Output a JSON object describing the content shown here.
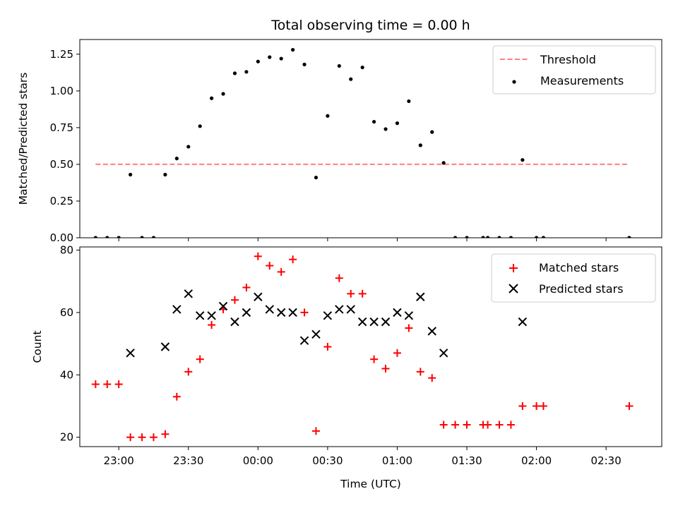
{
  "title": "Total observing time = 0.00 h",
  "chart_data": [
    {
      "type": "scatter",
      "ylabel": "Matched/Predicted stars",
      "ylim": [
        0,
        1.35
      ],
      "yticks": [
        "0.00",
        "0.25",
        "0.50",
        "0.75",
        "1.00",
        "1.25"
      ],
      "grid": false,
      "legend_position": "top-right",
      "threshold": {
        "name": "Threshold",
        "value": 0.5,
        "x_start": "22:50",
        "x_end": "02:40",
        "color": "#ff7f7f"
      },
      "series": [
        {
          "name": "Measurements",
          "color": "#000000",
          "points": [
            [
              "22:50",
              0.0
            ],
            [
              "22:55",
              0.0
            ],
            [
              "23:00",
              0.0
            ],
            [
              "23:05",
              0.43
            ],
            [
              "23:10",
              0.0
            ],
            [
              "23:15",
              0.0
            ],
            [
              "23:20",
              0.43
            ],
            [
              "23:25",
              0.54
            ],
            [
              "23:30",
              0.62
            ],
            [
              "23:35",
              0.76
            ],
            [
              "23:40",
              0.95
            ],
            [
              "23:45",
              0.98
            ],
            [
              "23:50",
              1.12
            ],
            [
              "23:55",
              1.13
            ],
            [
              "00:00",
              1.2
            ],
            [
              "00:05",
              1.23
            ],
            [
              "00:10",
              1.22
            ],
            [
              "00:15",
              1.28
            ],
            [
              "00:20",
              1.18
            ],
            [
              "00:25",
              0.41
            ],
            [
              "00:30",
              0.83
            ],
            [
              "00:35",
              1.17
            ],
            [
              "00:40",
              1.08
            ],
            [
              "00:45",
              1.16
            ],
            [
              "00:50",
              0.79
            ],
            [
              "00:55",
              0.74
            ],
            [
              "01:00",
              0.78
            ],
            [
              "01:05",
              0.93
            ],
            [
              "01:10",
              0.63
            ],
            [
              "01:15",
              0.72
            ],
            [
              "01:20",
              0.51
            ],
            [
              "01:25",
              0.0
            ],
            [
              "01:30",
              0.0
            ],
            [
              "01:37",
              0.0
            ],
            [
              "01:39",
              0.0
            ],
            [
              "01:44",
              0.0
            ],
            [
              "01:49",
              0.0
            ],
            [
              "01:54",
              0.53
            ],
            [
              "02:00",
              0.0
            ],
            [
              "02:03",
              0.0
            ],
            [
              "02:40",
              0.0
            ]
          ]
        }
      ]
    },
    {
      "type": "scatter",
      "xlabel": "Time (UTC)",
      "ylabel": "Count",
      "ylim": [
        17,
        81
      ],
      "yticks": [
        "20",
        "40",
        "60",
        "80"
      ],
      "xticks": [
        "23:00",
        "23:30",
        "00:00",
        "00:30",
        "01:00",
        "01:30",
        "02:00",
        "02:30"
      ],
      "grid": false,
      "legend_position": "top-right",
      "series": [
        {
          "name": "Matched stars",
          "color": "#ff0000",
          "marker": "plus",
          "points": [
            [
              "22:50",
              37
            ],
            [
              "22:55",
              37
            ],
            [
              "23:00",
              37
            ],
            [
              "23:05",
              20
            ],
            [
              "23:10",
              20
            ],
            [
              "23:15",
              20
            ],
            [
              "23:20",
              21
            ],
            [
              "23:25",
              33
            ],
            [
              "23:30",
              41
            ],
            [
              "23:35",
              45
            ],
            [
              "23:40",
              56
            ],
            [
              "23:45",
              61
            ],
            [
              "23:50",
              64
            ],
            [
              "23:55",
              68
            ],
            [
              "00:00",
              78
            ],
            [
              "00:05",
              75
            ],
            [
              "00:10",
              73
            ],
            [
              "00:15",
              77
            ],
            [
              "00:20",
              60
            ],
            [
              "00:25",
              22
            ],
            [
              "00:30",
              49
            ],
            [
              "00:35",
              71
            ],
            [
              "00:40",
              66
            ],
            [
              "00:45",
              66
            ],
            [
              "00:50",
              45
            ],
            [
              "00:55",
              42
            ],
            [
              "01:00",
              47
            ],
            [
              "01:05",
              55
            ],
            [
              "01:10",
              41
            ],
            [
              "01:15",
              39
            ],
            [
              "01:20",
              24
            ],
            [
              "01:25",
              24
            ],
            [
              "01:30",
              24
            ],
            [
              "01:37",
              24
            ],
            [
              "01:39",
              24
            ],
            [
              "01:44",
              24
            ],
            [
              "01:49",
              24
            ],
            [
              "01:54",
              30
            ],
            [
              "02:00",
              30
            ],
            [
              "02:03",
              30
            ],
            [
              "02:40",
              30
            ]
          ]
        },
        {
          "name": "Predicted stars",
          "color": "#000000",
          "marker": "x",
          "points": [
            [
              "23:05",
              47
            ],
            [
              "23:20",
              49
            ],
            [
              "23:25",
              61
            ],
            [
              "23:30",
              66
            ],
            [
              "23:35",
              59
            ],
            [
              "23:40",
              59
            ],
            [
              "23:45",
              62
            ],
            [
              "23:50",
              57
            ],
            [
              "23:55",
              60
            ],
            [
              "00:00",
              65
            ],
            [
              "00:05",
              61
            ],
            [
              "00:10",
              60
            ],
            [
              "00:15",
              60
            ],
            [
              "00:20",
              51
            ],
            [
              "00:25",
              53
            ],
            [
              "00:30",
              59
            ],
            [
              "00:35",
              61
            ],
            [
              "00:40",
              61
            ],
            [
              "00:45",
              57
            ],
            [
              "00:50",
              57
            ],
            [
              "00:55",
              57
            ],
            [
              "01:00",
              60
            ],
            [
              "01:05",
              59
            ],
            [
              "01:10",
              65
            ],
            [
              "01:15",
              54
            ],
            [
              "01:20",
              47
            ],
            [
              "01:54",
              57
            ]
          ]
        }
      ]
    }
  ]
}
